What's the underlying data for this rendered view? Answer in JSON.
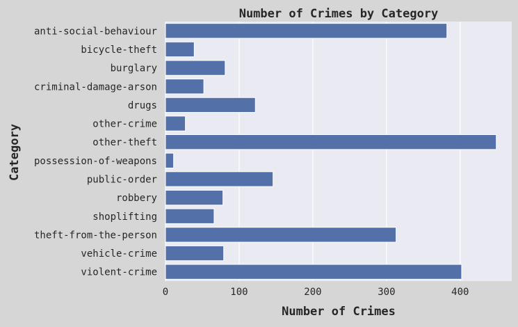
{
  "chart_data": {
    "type": "bar",
    "orientation": "horizontal",
    "title": "Number of Crimes by Category",
    "xlabel": "Number of Crimes",
    "ylabel": "Category",
    "categories": [
      "anti-social-behaviour",
      "bicycle-theft",
      "burglary",
      "criminal-damage-arson",
      "drugs",
      "other-crime",
      "other-theft",
      "possession-of-weapons",
      "public-order",
      "robbery",
      "shoplifting",
      "theft-from-the-person",
      "vehicle-crime",
      "violent-crime"
    ],
    "values": [
      382,
      39,
      81,
      52,
      122,
      27,
      449,
      11,
      146,
      78,
      66,
      313,
      79,
      402
    ],
    "xlim": [
      0,
      470
    ],
    "xticks": [
      0,
      100,
      200,
      300,
      400
    ],
    "grid": true,
    "colors": {
      "bar": "#5470a8",
      "plot_background": "#eaeaf2",
      "page_background": "#d6d6d6",
      "grid": "#ffffff",
      "text": "#262626"
    }
  }
}
